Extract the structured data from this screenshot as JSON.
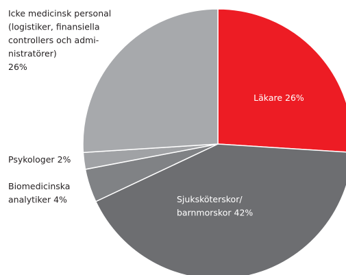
{
  "chart_data": {
    "type": "pie",
    "categories": [
      "Läkare",
      [
        "Sjuksköterskor/",
        "barnmorskor"
      ],
      [
        "Biomedicinska",
        "analytiker"
      ],
      "Psykologer",
      [
        "Icke medicinsk personal",
        "(logistiker, finansiella",
        "controllers och admi-",
        "nistratörer)"
      ]
    ],
    "values": [
      26,
      42,
      4,
      2,
      26
    ],
    "value_labels": [
      "26%",
      "42%",
      "4%",
      "2%",
      "26%"
    ],
    "colors": [
      "#ed1c24",
      "#6d6e71",
      "#808285",
      "#a0a2a5",
      "#a7a9ac"
    ]
  }
}
